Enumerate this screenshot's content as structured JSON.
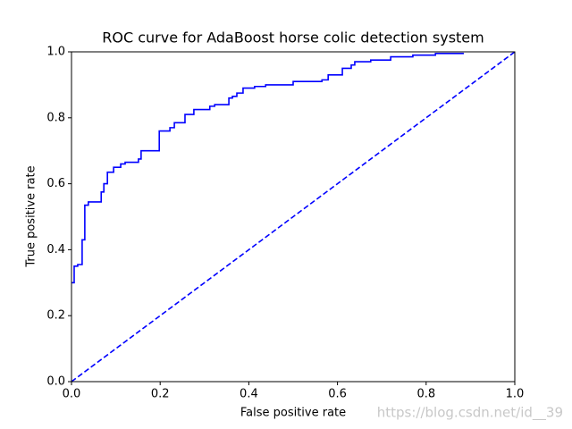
{
  "chart_data": {
    "type": "line",
    "title": "ROC curve for AdaBoost horse colic detection system",
    "xlabel": "False positive rate",
    "ylabel": "True positive rate",
    "annotation": "https://blog.csdn.net/id__39",
    "xlim": [
      0,
      1
    ],
    "ylim": [
      0,
      1
    ],
    "xticks": [
      {
        "value": 0,
        "label": "0.0"
      },
      0.2,
      0.4,
      0.6,
      0.8,
      {
        "value": 1,
        "label": "1.0"
      }
    ],
    "yticks": [
      {
        "value": 0,
        "label": "0.0"
      },
      0.2,
      0.4,
      0.6,
      0.8,
      {
        "value": 1,
        "label": "1.0"
      }
    ],
    "grid": false,
    "series": [
      {
        "color": "#0000ff",
        "linestyle": "solid",
        "x": [
          0,
          0.006,
          0.006,
          0.014,
          0.014,
          0.024,
          0.024,
          0.03,
          0.03,
          0.038,
          0.038,
          0.067,
          0.067,
          0.073,
          0.073,
          0.081,
          0.081,
          0.095,
          0.095,
          0.111,
          0.111,
          0.121,
          0.121,
          0.151,
          0.151,
          0.157,
          0.157,
          0.198,
          0.198,
          0.222,
          0.222,
          0.232,
          0.232,
          0.256,
          0.256,
          0.276,
          0.276,
          0.312,
          0.312,
          0.323,
          0.323,
          0.355,
          0.355,
          0.363,
          0.363,
          0.373,
          0.373,
          0.387,
          0.387,
          0.413,
          0.413,
          0.438,
          0.438,
          0.5,
          0.5,
          0.565,
          0.565,
          0.579,
          0.579,
          0.611,
          0.611,
          0.631,
          0.631,
          0.639,
          0.639,
          0.675,
          0.675,
          0.72,
          0.72,
          0.77,
          0.77,
          0.821,
          0.821,
          0.885
        ],
        "values": [
          0.3,
          0.3,
          0.35,
          0.35,
          0.355,
          0.355,
          0.43,
          0.43,
          0.535,
          0.535,
          0.545,
          0.545,
          0.575,
          0.575,
          0.6,
          0.6,
          0.635,
          0.635,
          0.65,
          0.65,
          0.66,
          0.66,
          0.665,
          0.665,
          0.675,
          0.675,
          0.7,
          0.7,
          0.76,
          0.76,
          0.77,
          0.77,
          0.785,
          0.785,
          0.81,
          0.81,
          0.825,
          0.825,
          0.835,
          0.835,
          0.84,
          0.84,
          0.86,
          0.86,
          0.865,
          0.865,
          0.875,
          0.875,
          0.89,
          0.89,
          0.895,
          0.895,
          0.9,
          0.9,
          0.91,
          0.91,
          0.915,
          0.915,
          0.93,
          0.93,
          0.95,
          0.95,
          0.96,
          0.96,
          0.97,
          0.97,
          0.975,
          0.975,
          0.985,
          0.985,
          0.99,
          0.99,
          0.995,
          0.995
        ]
      },
      {
        "color": "#0000ff",
        "linestyle": "dashed",
        "x": [
          0,
          1
        ],
        "values": [
          0,
          1
        ]
      }
    ]
  }
}
